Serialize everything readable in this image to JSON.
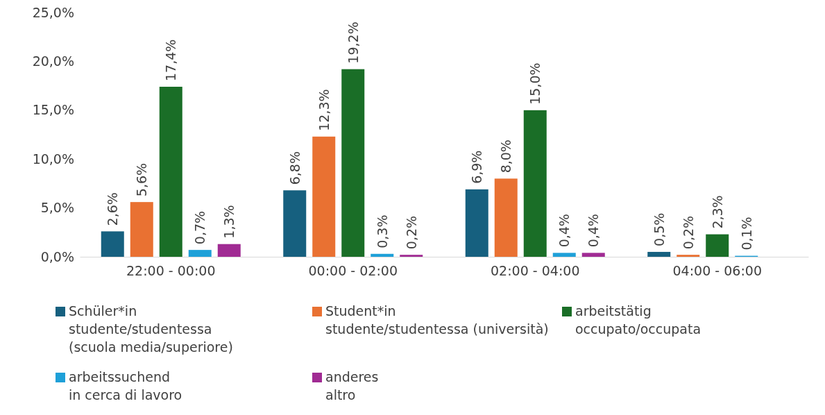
{
  "chart_data": {
    "type": "bar",
    "categories": [
      "22:00 - 00:00",
      "00:00 - 02:00",
      "02:00 - 04:00",
      "04:00 - 06:00"
    ],
    "ylim": [
      0,
      25
    ],
    "yticks": [
      {
        "value": 0,
        "label": "0,0%"
      },
      {
        "value": 5,
        "label": "5,0%"
      },
      {
        "value": 10,
        "label": "10,0%"
      },
      {
        "value": 15,
        "label": "15,0%"
      },
      {
        "value": 20,
        "label": "20,0%"
      },
      {
        "value": 25,
        "label": "25,0%"
      }
    ],
    "grid": false,
    "legend": "bottom",
    "series": [
      {
        "name": "Schüler*in\nstudente/studentessa\n(scuola media/superiore)",
        "color": "#16607f",
        "values": [
          2.6,
          6.8,
          6.9,
          0.5
        ],
        "value_labels": [
          "2,6%",
          "6,8%",
          "6,9%",
          "0,5%"
        ]
      },
      {
        "name": "Student*in\nstudente/studentessa (università)",
        "color": "#e97132",
        "values": [
          5.6,
          12.3,
          8.0,
          0.2
        ],
        "value_labels": [
          "5,6%",
          "12,3%",
          "8,0%",
          "0,2%"
        ]
      },
      {
        "name": "arbeitstätig\noccupato/occupata",
        "color": "#1a6e27",
        "values": [
          17.4,
          19.2,
          15.0,
          2.3
        ],
        "value_labels": [
          "17,4%",
          "19,2%",
          "15,0%",
          "2,3%"
        ]
      },
      {
        "name": "arbeitssuchend\nin cerca di lavoro",
        "color": "#1ea0d8",
        "values": [
          0.7,
          0.3,
          0.4,
          0.1
        ],
        "value_labels": [
          "0,7%",
          "0,3%",
          "0,4%",
          "0,1%"
        ]
      },
      {
        "name": "anderes\naltro",
        "color": "#a02b93",
        "values": [
          1.3,
          0.2,
          0.4,
          null
        ],
        "value_labels": [
          "1,3%",
          "0,2%",
          "0,4%",
          null
        ]
      }
    ]
  }
}
